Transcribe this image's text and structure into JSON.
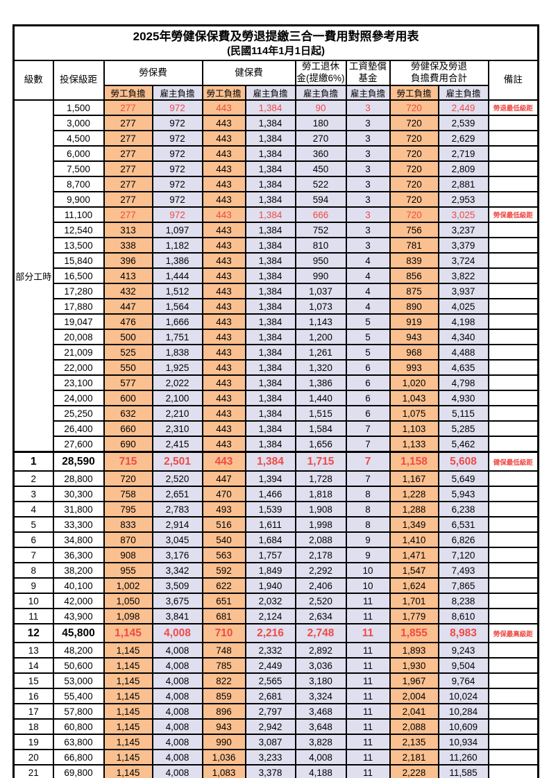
{
  "title": "2025年勞健保保費及勞退提繳三合一費用對照參考用表",
  "subtitle": "(民國114年1月1日起)",
  "colors": {
    "employee_bg": "#FAC090",
    "employer_bg": "#DFDFEF",
    "red_text": "#F04A45",
    "border": "#000000"
  },
  "header": {
    "level": "級數",
    "salary_bracket": "投保級距",
    "labor_insurance": "勞保費",
    "health_insurance": "健保費",
    "pension": [
      "勞工退休",
      "金(提繳6%)"
    ],
    "wage_fund": [
      "工資墊償",
      "基金"
    ],
    "total": [
      "勞健保及勞退",
      "負擔費用合計"
    ],
    "remark": "備註",
    "employee": "勞工負擔",
    "employer": "雇主負擔"
  },
  "part_time_label": "部分工時",
  "part_time_rowspan": 23,
  "rows": [
    {
      "level": "",
      "salary": "1,500",
      "values": [
        "277",
        "972",
        "443",
        "1,384",
        "90",
        "3",
        "720",
        "2,449"
      ],
      "remark": "勞退最低級距",
      "red": true
    },
    {
      "level": "",
      "salary": "3,000",
      "values": [
        "277",
        "972",
        "443",
        "1,384",
        "180",
        "3",
        "720",
        "2,539"
      ],
      "remark": ""
    },
    {
      "level": "",
      "salary": "4,500",
      "values": [
        "277",
        "972",
        "443",
        "1,384",
        "270",
        "3",
        "720",
        "2,629"
      ],
      "remark": ""
    },
    {
      "level": "",
      "salary": "6,000",
      "values": [
        "277",
        "972",
        "443",
        "1,384",
        "360",
        "3",
        "720",
        "2,719"
      ],
      "remark": ""
    },
    {
      "level": "",
      "salary": "7,500",
      "values": [
        "277",
        "972",
        "443",
        "1,384",
        "450",
        "3",
        "720",
        "2,809"
      ],
      "remark": ""
    },
    {
      "level": "",
      "salary": "8,700",
      "values": [
        "277",
        "972",
        "443",
        "1,384",
        "522",
        "3",
        "720",
        "2,881"
      ],
      "remark": ""
    },
    {
      "level": "",
      "salary": "9,900",
      "values": [
        "277",
        "972",
        "443",
        "1,384",
        "594",
        "3",
        "720",
        "2,953"
      ],
      "remark": ""
    },
    {
      "level": "",
      "salary": "11,100",
      "values": [
        "277",
        "972",
        "443",
        "1,384",
        "666",
        "3",
        "720",
        "3,025"
      ],
      "remark": "勞保最低級距",
      "red": true
    },
    {
      "level": "",
      "salary": "12,540",
      "values": [
        "313",
        "1,097",
        "443",
        "1,384",
        "752",
        "3",
        "756",
        "3,237"
      ],
      "remark": ""
    },
    {
      "level": "",
      "salary": "13,500",
      "values": [
        "338",
        "1,182",
        "443",
        "1,384",
        "810",
        "3",
        "781",
        "3,379"
      ],
      "remark": ""
    },
    {
      "level": "",
      "salary": "15,840",
      "values": [
        "396",
        "1,386",
        "443",
        "1,384",
        "950",
        "4",
        "839",
        "3,724"
      ],
      "remark": ""
    },
    {
      "level": "",
      "salary": "16,500",
      "values": [
        "413",
        "1,444",
        "443",
        "1,384",
        "990",
        "4",
        "856",
        "3,822"
      ],
      "remark": ""
    },
    {
      "level": "",
      "salary": "17,280",
      "values": [
        "432",
        "1,512",
        "443",
        "1,384",
        "1,037",
        "4",
        "875",
        "3,937"
      ],
      "remark": ""
    },
    {
      "level": "",
      "salary": "17,880",
      "values": [
        "447",
        "1,564",
        "443",
        "1,384",
        "1,073",
        "4",
        "890",
        "4,025"
      ],
      "remark": ""
    },
    {
      "level": "",
      "salary": "19,047",
      "values": [
        "476",
        "1,666",
        "443",
        "1,384",
        "1,143",
        "5",
        "919",
        "4,198"
      ],
      "remark": ""
    },
    {
      "level": "",
      "salary": "20,008",
      "values": [
        "500",
        "1,751",
        "443",
        "1,384",
        "1,200",
        "5",
        "943",
        "4,340"
      ],
      "remark": ""
    },
    {
      "level": "",
      "salary": "21,009",
      "values": [
        "525",
        "1,838",
        "443",
        "1,384",
        "1,261",
        "5",
        "968",
        "4,488"
      ],
      "remark": ""
    },
    {
      "level": "",
      "salary": "22,000",
      "values": [
        "550",
        "1,925",
        "443",
        "1,384",
        "1,320",
        "6",
        "993",
        "4,635"
      ],
      "remark": ""
    },
    {
      "level": "",
      "salary": "23,100",
      "values": [
        "577",
        "2,022",
        "443",
        "1,384",
        "1,386",
        "6",
        "1,020",
        "4,798"
      ],
      "remark": ""
    },
    {
      "level": "",
      "salary": "24,000",
      "values": [
        "600",
        "2,100",
        "443",
        "1,384",
        "1,440",
        "6",
        "1,043",
        "4,930"
      ],
      "remark": ""
    },
    {
      "level": "",
      "salary": "25,250",
      "values": [
        "632",
        "2,210",
        "443",
        "1,384",
        "1,515",
        "6",
        "1,075",
        "5,115"
      ],
      "remark": ""
    },
    {
      "level": "",
      "salary": "26,400",
      "values": [
        "660",
        "2,310",
        "443",
        "1,384",
        "1,584",
        "7",
        "1,103",
        "5,285"
      ],
      "remark": ""
    },
    {
      "level": "",
      "salary": "27,600",
      "values": [
        "690",
        "2,415",
        "443",
        "1,384",
        "1,656",
        "7",
        "1,133",
        "5,462"
      ],
      "remark": ""
    },
    {
      "level": "1",
      "salary": "28,590",
      "values": [
        "715",
        "2,501",
        "443",
        "1,384",
        "1,715",
        "7",
        "1,158",
        "5,608"
      ],
      "remark": "健保最低級距",
      "red": true,
      "big": true,
      "start": true
    },
    {
      "level": "2",
      "salary": "28,800",
      "values": [
        "720",
        "2,520",
        "447",
        "1,394",
        "1,728",
        "7",
        "1,167",
        "5,649"
      ],
      "remark": ""
    },
    {
      "level": "3",
      "salary": "30,300",
      "values": [
        "758",
        "2,651",
        "470",
        "1,466",
        "1,818",
        "8",
        "1,228",
        "5,943"
      ],
      "remark": ""
    },
    {
      "level": "4",
      "salary": "31,800",
      "values": [
        "795",
        "2,783",
        "493",
        "1,539",
        "1,908",
        "8",
        "1,288",
        "6,238"
      ],
      "remark": ""
    },
    {
      "level": "5",
      "salary": "33,300",
      "values": [
        "833",
        "2,914",
        "516",
        "1,611",
        "1,998",
        "8",
        "1,349",
        "6,531"
      ],
      "remark": ""
    },
    {
      "level": "6",
      "salary": "34,800",
      "values": [
        "870",
        "3,045",
        "540",
        "1,684",
        "2,088",
        "9",
        "1,410",
        "6,826"
      ],
      "remark": ""
    },
    {
      "level": "7",
      "salary": "36,300",
      "values": [
        "908",
        "3,176",
        "563",
        "1,757",
        "2,178",
        "9",
        "1,471",
        "7,120"
      ],
      "remark": ""
    },
    {
      "level": "8",
      "salary": "38,200",
      "values": [
        "955",
        "3,342",
        "592",
        "1,849",
        "2,292",
        "10",
        "1,547",
        "7,493"
      ],
      "remark": ""
    },
    {
      "level": "9",
      "salary": "40,100",
      "values": [
        "1,002",
        "3,509",
        "622",
        "1,940",
        "2,406",
        "10",
        "1,624",
        "7,865"
      ],
      "remark": ""
    },
    {
      "level": "10",
      "salary": "42,000",
      "values": [
        "1,050",
        "3,675",
        "651",
        "2,032",
        "2,520",
        "11",
        "1,701",
        "8,238"
      ],
      "remark": ""
    },
    {
      "level": "11",
      "salary": "43,900",
      "values": [
        "1,098",
        "3,841",
        "681",
        "2,124",
        "2,634",
        "11",
        "1,779",
        "8,610"
      ],
      "remark": ""
    },
    {
      "level": "12",
      "salary": "45,800",
      "values": [
        "1,145",
        "4,008",
        "710",
        "2,216",
        "2,748",
        "11",
        "1,855",
        "8,983"
      ],
      "remark": "勞保最高級距",
      "red": true,
      "big": true
    },
    {
      "level": "13",
      "salary": "48,200",
      "values": [
        "1,145",
        "4,008",
        "748",
        "2,332",
        "2,892",
        "11",
        "1,893",
        "9,243"
      ],
      "remark": ""
    },
    {
      "level": "14",
      "salary": "50,600",
      "values": [
        "1,145",
        "4,008",
        "785",
        "2,449",
        "3,036",
        "11",
        "1,930",
        "9,504"
      ],
      "remark": ""
    },
    {
      "level": "15",
      "salary": "53,000",
      "values": [
        "1,145",
        "4,008",
        "822",
        "2,565",
        "3,180",
        "11",
        "1,967",
        "9,764"
      ],
      "remark": ""
    },
    {
      "level": "16",
      "salary": "55,400",
      "values": [
        "1,145",
        "4,008",
        "859",
        "2,681",
        "3,324",
        "11",
        "2,004",
        "10,024"
      ],
      "remark": ""
    },
    {
      "level": "17",
      "salary": "57,800",
      "values": [
        "1,145",
        "4,008",
        "896",
        "2,797",
        "3,468",
        "11",
        "2,041",
        "10,284"
      ],
      "remark": ""
    },
    {
      "level": "18",
      "salary": "60,800",
      "values": [
        "1,145",
        "4,008",
        "943",
        "2,942",
        "3,648",
        "11",
        "2,088",
        "10,609"
      ],
      "remark": ""
    },
    {
      "level": "19",
      "salary": "63,800",
      "values": [
        "1,145",
        "4,008",
        "990",
        "3,087",
        "3,828",
        "11",
        "2,135",
        "10,934"
      ],
      "remark": ""
    },
    {
      "level": "20",
      "salary": "66,800",
      "values": [
        "1,145",
        "4,008",
        "1,036",
        "3,233",
        "4,008",
        "11",
        "2,181",
        "11,260"
      ],
      "remark": ""
    },
    {
      "level": "21",
      "salary": "69,800",
      "values": [
        "1,145",
        "4,008",
        "1,083",
        "3,378",
        "4,188",
        "11",
        "2,228",
        "11,585"
      ],
      "remark": ""
    }
  ]
}
